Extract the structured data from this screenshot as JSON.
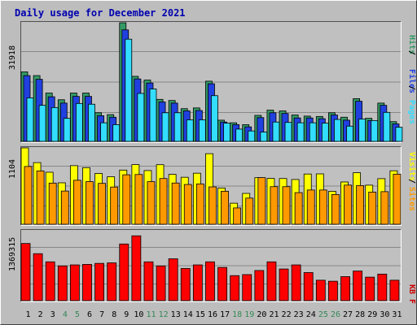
{
  "chart_data": [
    {
      "type": "bar",
      "title": "Daily usage for December 2021",
      "categories": [
        "1",
        "2",
        "3",
        "4",
        "5",
        "6",
        "7",
        "8",
        "9",
        "10",
        "11",
        "12",
        "13",
        "14",
        "15",
        "16",
        "17",
        "18",
        "19",
        "20",
        "21",
        "22",
        "23",
        "24",
        "25",
        "26",
        "27",
        "28",
        "29",
        "30",
        "31"
      ],
      "weekend_days": [
        "4",
        "5",
        "11",
        "12",
        "18",
        "19",
        "25",
        "26"
      ],
      "y_tick_label": "31918",
      "ylim": [
        0,
        31918
      ],
      "grid": true,
      "legend": "right-vertical",
      "series": [
        {
          "name": "Hits",
          "color": "#339966",
          "values": [
            18700,
            17700,
            13000,
            11200,
            13000,
            13000,
            7700,
            7200,
            31918,
            17500,
            16500,
            11300,
            11000,
            8800,
            9000,
            16200,
            5700,
            5000,
            4500,
            7000,
            8400,
            8200,
            7100,
            6800,
            6700,
            7700,
            6500,
            11500,
            6200,
            10300,
            5300
          ]
        },
        {
          "name": "Files",
          "color": "#2040e0",
          "values": [
            17700,
            16700,
            12000,
            10300,
            12100,
            12100,
            6900,
            6500,
            30000,
            16800,
            15700,
            10600,
            10300,
            8200,
            8300,
            15500,
            5200,
            4500,
            3900,
            6400,
            7700,
            7500,
            6300,
            6300,
            6100,
            7100,
            5700,
            10800,
            5600,
            9700,
            4700
          ]
        },
        {
          "name": "Pages",
          "color": "#33ddff",
          "values": [
            11700,
            9700,
            9100,
            6200,
            10200,
            10000,
            5000,
            4500,
            27500,
            12900,
            14100,
            7700,
            7700,
            5800,
            5800,
            12300,
            4900,
            3300,
            2800,
            2500,
            5200,
            5100,
            5000,
            5000,
            4900,
            5900,
            4100,
            6000,
            5600,
            7800,
            3800
          ]
        }
      ]
    },
    {
      "type": "bar",
      "y_tick_label": "1104",
      "ylim": [
        0,
        1104
      ],
      "grid": true,
      "legend": "right-vertical",
      "series": [
        {
          "name": "Visits",
          "color": "#ffff00",
          "values": [
            1104,
            891,
            752,
            599,
            847,
            818,
            734,
            687,
            783,
            862,
            776,
            861,
            721,
            679,
            738,
            1020,
            524,
            304,
            446,
            673,
            663,
            661,
            647,
            726,
            728,
            476,
            611,
            745,
            565,
            659,
            773
          ]
        },
        {
          "name": "Sites",
          "color": "#ff9900",
          "values": [
            835,
            771,
            595,
            480,
            636,
            616,
            591,
            538,
            715,
            719,
            616,
            661,
            596,
            575,
            583,
            540,
            477,
            236,
            378,
            674,
            543,
            543,
            457,
            495,
            495,
            430,
            566,
            559,
            465,
            471,
            724
          ]
        }
      ]
    },
    {
      "type": "bar",
      "y_tick_label": "1369315",
      "ylim": [
        0,
        1369315
      ],
      "grid": true,
      "legend": "right-vertical",
      "series": [
        {
          "name": "KB F",
          "color": "#ff0000",
          "values": [
            1120000,
            920000,
            760000,
            680000,
            700000,
            710000,
            730000,
            740000,
            1110000,
            1270000,
            760000,
            680000,
            820000,
            630000,
            700000,
            760000,
            650000,
            490000,
            510000,
            590000,
            760000,
            620000,
            700000,
            550000,
            400000,
            380000,
            470000,
            580000,
            460000,
            520000,
            400000
          ]
        }
      ]
    }
  ]
}
